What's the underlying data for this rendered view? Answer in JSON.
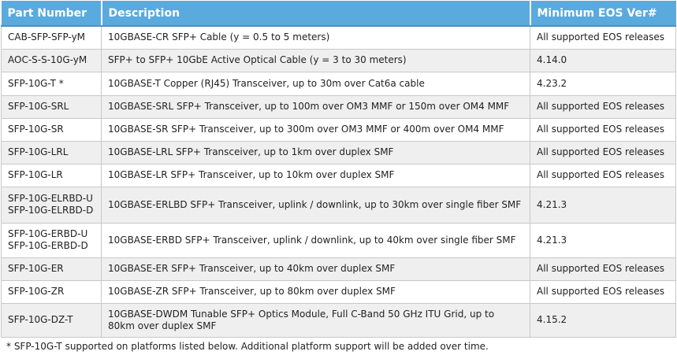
{
  "headers": [
    "Part Number",
    "Description",
    "Minimum EOS Ver#"
  ],
  "rows": [
    {
      "part": "CAB-SFP-SFP-yM",
      "desc": "10GBASE-CR SFP+ Cable (y = 0.5 to 5 meters)",
      "eos": "All supported EOS releases"
    },
    {
      "part": "AOC-S-S-10G-yM",
      "desc": "SFP+ to SFP+ 10GbE Active Optical Cable (y = 3 to 30 meters)",
      "eos": "4.14.0"
    },
    {
      "part": "SFP-10G-T *",
      "desc": "10GBASE-T Copper (RJ45) Transceiver, up to 30m over Cat6a cable",
      "eos": "4.23.2"
    },
    {
      "part": "SFP-10G-SRL",
      "desc": "10GBASE-SRL SFP+ Transceiver, up to 100m over OM3 MMF or 150m over OM4 MMF",
      "eos": "All supported EOS releases"
    },
    {
      "part": "SFP-10G-SR",
      "desc": "10GBASE-SR SFP+ Transceiver, up to 300m over OM3 MMF or 400m over OM4 MMF",
      "eos": "All supported EOS releases"
    },
    {
      "part": "SFP-10G-LRL",
      "desc": "10GBASE-LRL SFP+ Transceiver, up to 1km over duplex SMF",
      "eos": "All supported EOS releases"
    },
    {
      "part": "SFP-10G-LR",
      "desc": "10GBASE-LR SFP+ Transceiver, up to 10km over duplex SMF",
      "eos": "All supported EOS releases"
    },
    {
      "part": "SFP-10G-ELRBD-U\nSFP-10G-ELRBD-D",
      "desc": "10GBASE-ERLBD SFP+ Transceiver, uplink / downlink, up to 30km over single fiber SMF",
      "eos": "4.21.3"
    },
    {
      "part": "SFP-10G-ERBD-U\nSFP-10G-ERBD-D",
      "desc": "10GBASE-ERBD SFP+ Transceiver, uplink / downlink, up to 40km over single fiber SMF",
      "eos": "4.21.3"
    },
    {
      "part": "SFP-10G-ER",
      "desc": "10GBASE-ER SFP+ Transceiver, up to 40km over duplex SMF",
      "eos": "All supported EOS releases"
    },
    {
      "part": "SFP-10G-ZR",
      "desc": "10GBASE-ZR SFP+ Transceiver, up to 80km over duplex SMF",
      "eos": "All supported EOS releases"
    },
    {
      "part": "SFP-10G-DZ-T",
      "desc": "10GBASE-DWDM Tunable SFP+ Optics Module, Full C-Band 50 GHz ITU Grid, up to 80km over duplex SMF",
      "eos": "4.15.2"
    }
  ],
  "footnote": "* SFP-10G-T supported on platforms listed below.  Additional platform support will be added over time.",
  "colors": {
    "header_bg": "#5aaadd",
    "row_alt": "#efefef"
  }
}
